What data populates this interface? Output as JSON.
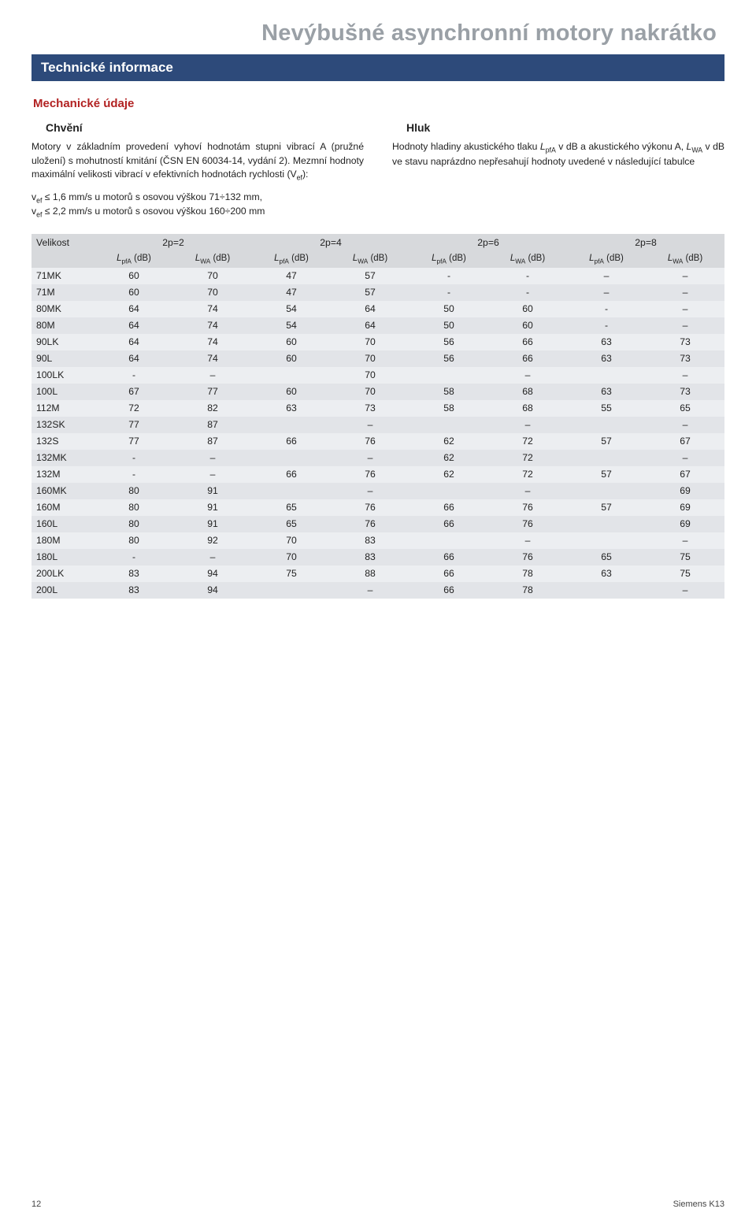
{
  "page": {
    "main_title": "Nevýbušné asynchronní motory nakrátko",
    "section_bar": "Technické informace",
    "mech_title": "Mechanické údaje",
    "left": {
      "title": "Chvění",
      "para": "Motory v základním provedení vyhoví hodnotám stupni vibrací A (pružné uložení) s mohutností kmitání (ČSN EN 60034-14, vydání 2). Mezmní hodnoty maximální velikosti vibrací v efektivních hodnotách rychlosti (V",
      "para_tail": "):",
      "line1_a": "v",
      "line1_b": " ≤ 1,6 mm/s u motorů s osovou výškou 71÷132 mm,",
      "line2_a": "v",
      "line2_b": " ≤ 2,2 mm/s u motorů s osovou výškou 160÷200 mm",
      "sub_ef": "ef"
    },
    "right": {
      "title": "Hluk",
      "para_a": "Hodnoty hladiny akustického tlaku ",
      "para_b": " v dB a akustického výkonu A, ",
      "para_c": " v dB ve stavu naprázdno nepřesahují hodnoty uvedené v následující tabulce",
      "sym_LpfA": "L",
      "sub_pfA": "pfA",
      "sym_LWA": "L",
      "sub_WA": "WA"
    }
  },
  "table": {
    "hdr_size": "Velikost",
    "groups": [
      "2p=2",
      "2p=4",
      "2p=6",
      "2p=8"
    ],
    "sub_LpfA_pre": "L",
    "sub_LpfA_sub": "pfA",
    "sub_LWA_pre": "L",
    "sub_LWA_sub": "WA",
    "unit": " (dB)",
    "rows": [
      {
        "size": "71MK",
        "c": [
          "60",
          "70",
          "47",
          "57",
          "-",
          "-",
          "–",
          "–"
        ]
      },
      {
        "size": "71M",
        "c": [
          "60",
          "70",
          "47",
          "57",
          "-",
          "-",
          "–",
          "–"
        ]
      },
      {
        "size": "80MK",
        "c": [
          "64",
          "74",
          "54",
          "64",
          "50",
          "60",
          "-",
          "–"
        ]
      },
      {
        "size": "80M",
        "c": [
          "64",
          "74",
          "54",
          "64",
          "50",
          "60",
          "-",
          "–"
        ]
      },
      {
        "size": "90LK",
        "c": [
          "64",
          "74",
          "60",
          "70",
          "56",
          "66",
          "63",
          "73"
        ]
      },
      {
        "size": "90L",
        "c": [
          "64",
          "74",
          "60",
          "70",
          "56",
          "66",
          "63",
          "73"
        ]
      },
      {
        "size": "100LK",
        "c": [
          "-",
          "–",
          "",
          "70",
          "",
          "–",
          "",
          "–"
        ]
      },
      {
        "size": "100L",
        "c": [
          "67",
          "77",
          "60",
          "70",
          "58",
          "68",
          "63",
          "73"
        ]
      },
      {
        "size": "112M",
        "c": [
          "72",
          "82",
          "63",
          "73",
          "58",
          "68",
          "55",
          "65"
        ]
      },
      {
        "size": "132SK",
        "c": [
          "77",
          "87",
          "",
          "–",
          "",
          "–",
          "",
          "–"
        ]
      },
      {
        "size": "132S",
        "c": [
          "77",
          "87",
          "66",
          "76",
          "62",
          "72",
          "57",
          "67"
        ]
      },
      {
        "size": "132MK",
        "c": [
          "-",
          "–",
          "",
          "–",
          "62",
          "72",
          "",
          "–"
        ]
      },
      {
        "size": "132M",
        "c": [
          "-",
          "–",
          "66",
          "76",
          "62",
          "72",
          "57",
          "67"
        ]
      },
      {
        "size": "160MK",
        "c": [
          "80",
          "91",
          "",
          "–",
          "",
          "–",
          "",
          "69"
        ]
      },
      {
        "size": "160M",
        "c": [
          "80",
          "91",
          "65",
          "76",
          "66",
          "76",
          "57",
          "69"
        ]
      },
      {
        "size": "160L",
        "c": [
          "80",
          "91",
          "65",
          "76",
          "66",
          "76",
          "",
          "69"
        ]
      },
      {
        "size": "180M",
        "c": [
          "80",
          "92",
          "70",
          "83",
          "",
          "–",
          "",
          "–"
        ]
      },
      {
        "size": "180L",
        "c": [
          "-",
          "–",
          "70",
          "83",
          "66",
          "76",
          "65",
          "75"
        ]
      },
      {
        "size": "200LK",
        "c": [
          "83",
          "94",
          "75",
          "88",
          "66",
          "78",
          "63",
          "75"
        ]
      },
      {
        "size": "200L",
        "c": [
          "83",
          "94",
          "",
          "–",
          "66",
          "78",
          "",
          "–"
        ]
      }
    ]
  },
  "footer": {
    "page_num": "12",
    "brand": "Siemens K13"
  },
  "colors": {
    "title_gray": "#9aa0a6",
    "bar_blue": "#2d4a7a",
    "mech_red": "#b22222",
    "row_a": "#eceef1",
    "row_b": "#e2e4e8",
    "hdr_bg": "#d7d9dc"
  }
}
